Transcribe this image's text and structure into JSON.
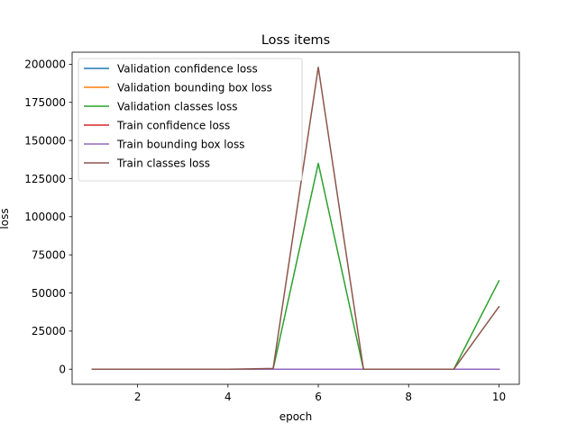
{
  "chart_data": {
    "type": "line",
    "title": "Loss items",
    "xlabel": "epoch",
    "ylabel": "loss",
    "xlim": [
      0.55,
      10.45
    ],
    "ylim": [
      -9900,
      207900
    ],
    "x": [
      1,
      2,
      3,
      4,
      5,
      6,
      7,
      8,
      9,
      10
    ],
    "xticks": [
      2,
      4,
      6,
      8,
      10
    ],
    "xtick_labels": [
      "2",
      "4",
      "6",
      "8",
      "10"
    ],
    "yticks": [
      0,
      25000,
      50000,
      75000,
      100000,
      125000,
      150000,
      175000,
      200000
    ],
    "ytick_labels": [
      "0",
      "25000",
      "50000",
      "75000",
      "100000",
      "125000",
      "150000",
      "175000",
      "200000"
    ],
    "grid": false,
    "legend_position": "top-left",
    "series": [
      {
        "name": "Validation confidence loss",
        "color": "#1f77b4",
        "values": [
          5,
          5,
          5,
          5,
          5,
          5,
          5,
          5,
          5,
          5
        ]
      },
      {
        "name": "Validation bounding box loss",
        "color": "#ff7f0e",
        "values": [
          3,
          3,
          3,
          3,
          3,
          3,
          3,
          3,
          3,
          3
        ]
      },
      {
        "name": "Validation classes loss",
        "color": "#2ca02c",
        "values": [
          0,
          0,
          0,
          0,
          0,
          135000,
          0,
          0,
          0,
          58000
        ]
      },
      {
        "name": "Train confidence loss",
        "color": "#d62728",
        "values": [
          5,
          5,
          5,
          5,
          5,
          5,
          5,
          5,
          5,
          5
        ]
      },
      {
        "name": "Train bounding box loss",
        "color": "#9467bd",
        "values": [
          3,
          3,
          3,
          3,
          3,
          3,
          3,
          3,
          3,
          3
        ]
      },
      {
        "name": "Train classes loss",
        "color": "#8c564b",
        "values": [
          0,
          0,
          0,
          0,
          500,
          198000,
          0,
          0,
          0,
          41000
        ]
      }
    ]
  }
}
